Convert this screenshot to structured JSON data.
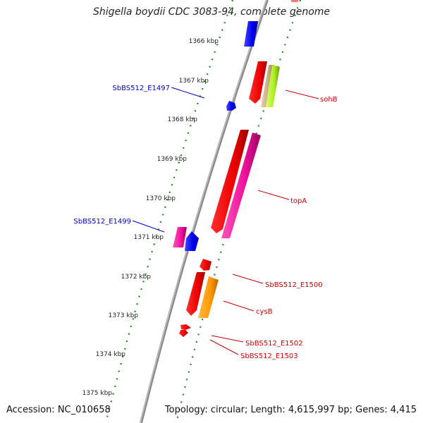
{
  "title": "Shigella boydii CDC 3083-94, complete genome",
  "accession_label": "Accession: NC_010658",
  "summary_label": "Topology: circular; Length: 4,615,997 bp; Genes: 4,415",
  "colors": {
    "backbone": "#8c8c8c",
    "ticks": "#1a8a1a",
    "label_red": "#cc0000",
    "label_blue": "#0000bb"
  },
  "kbp_ticks": [
    "1366 kbp",
    "1367 kbp",
    "1368 kbp",
    "1369 kbp",
    "1370 kbp",
    "1371 kbp",
    "1372 kbp",
    "1373 kbp",
    "1374 kbp",
    "1375 kbp"
  ],
  "gene_labels": {
    "sohB": "sohB",
    "topA": "topA",
    "SbBS512_E1500": "SbBS512_E1500",
    "cysB": "cysB",
    "SbBS512_E1502": "SbBS512_E1502",
    "SbBS512_E1503": "SbBS512_E1503",
    "SbBS512_E1497": "SbBS512_E1497",
    "SbBS512_E1499": "SbBS512_E1499"
  }
}
